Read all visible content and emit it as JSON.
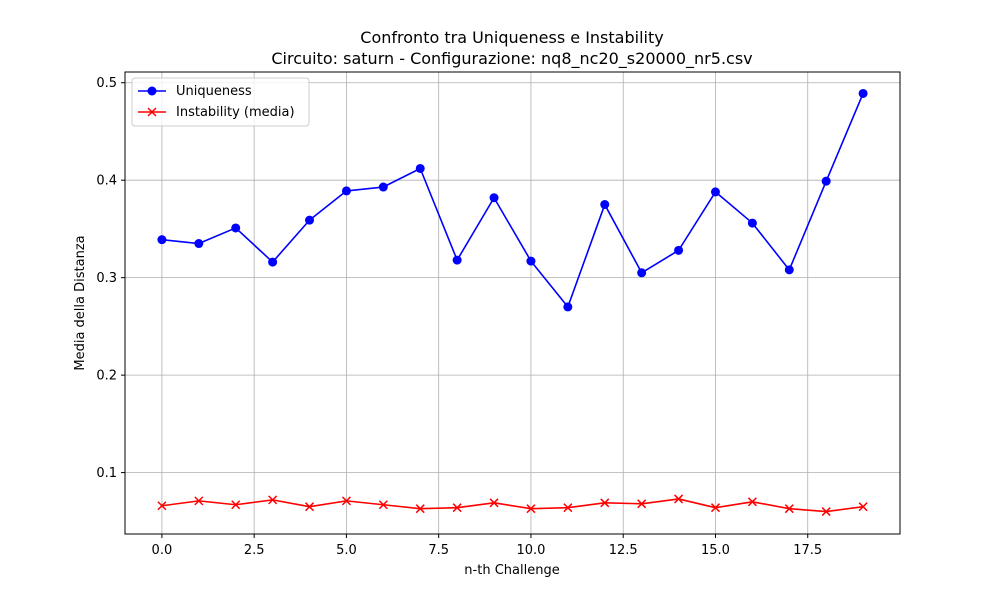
{
  "chart_data": {
    "type": "line",
    "title": "Confronto tra Uniqueness e Instability",
    "subtitle": "Circuito: saturn - Configurazione: nq8_nc20_s20000_nr5.csv",
    "xlabel": "n-th Challenge",
    "ylabel": "Media della Distanza",
    "x": [
      0,
      1,
      2,
      3,
      4,
      5,
      6,
      7,
      8,
      9,
      10,
      11,
      12,
      13,
      14,
      15,
      16,
      17,
      18,
      19
    ],
    "xlim": [
      -1,
      20
    ],
    "ylim": [
      0.037,
      0.511
    ],
    "xticks": [
      0.0,
      2.5,
      5.0,
      7.5,
      10.0,
      12.5,
      15.0,
      17.5
    ],
    "xtick_labels": [
      "0.0",
      "2.5",
      "5.0",
      "7.5",
      "10.0",
      "12.5",
      "15.0",
      "17.5"
    ],
    "yticks": [
      0.1,
      0.2,
      0.3,
      0.4,
      0.5
    ],
    "ytick_labels": [
      "0.1",
      "0.2",
      "0.3",
      "0.4",
      "0.5"
    ],
    "grid": true,
    "legend_position": "top-left",
    "series": [
      {
        "name": "Uniqueness",
        "color": "#0000ff",
        "marker": "circle",
        "values": [
          0.339,
          0.335,
          0.351,
          0.316,
          0.359,
          0.389,
          0.393,
          0.412,
          0.318,
          0.382,
          0.317,
          0.27,
          0.375,
          0.305,
          0.328,
          0.388,
          0.356,
          0.308,
          0.399,
          0.489
        ]
      },
      {
        "name": "Instability (media)",
        "color": "#ff0000",
        "marker": "x",
        "values": [
          0.066,
          0.071,
          0.067,
          0.072,
          0.065,
          0.071,
          0.067,
          0.063,
          0.064,
          0.069,
          0.063,
          0.064,
          0.069,
          0.068,
          0.073,
          0.064,
          0.07,
          0.063,
          0.06,
          0.065
        ]
      }
    ]
  }
}
